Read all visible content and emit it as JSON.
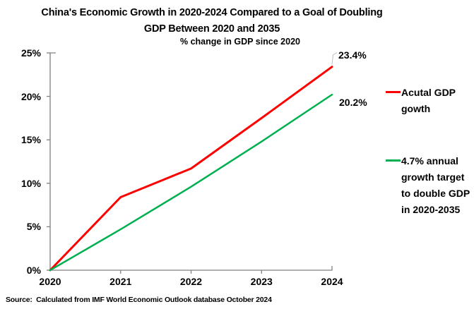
{
  "title": "China's Economic Growth in 2020-2024 Compared to a Goal of Doubling\nGDP Between 2020 and 2035",
  "subtitle": "% change in GDP since 2020",
  "source": "Source:  Calculated from IMF World Economic Outlook database October 2024",
  "colors": {
    "actual_line": "#ff0000",
    "target_line": "#00b050",
    "axis": "#808080",
    "leader": "#bfbfbf",
    "text": "#000000",
    "background": "#ffffff"
  },
  "legend": {
    "entries": [
      {
        "label": "Acutal GDP\ngowth",
        "color": "#ff0000"
      },
      {
        "label": "4.7% annual\ngrowth target\nto double GDP\nin 2020-2035",
        "color": "#00b050"
      }
    ]
  },
  "chart_data": {
    "type": "line",
    "title": "China's Economic Growth in 2020-2024 Compared to a Goal of Doubling GDP Between 2020 and 2035",
    "subtitle": "% change in GDP since 2020",
    "x": [
      "2020",
      "2021",
      "2022",
      "2023",
      "2024"
    ],
    "series": [
      {
        "name": "Acutal GDP gowth",
        "color": "#ff0000",
        "values": [
          0,
          8.4,
          11.7,
          17.5,
          23.4
        ],
        "end_label": "23.4%"
      },
      {
        "name": "4.7% annual growth target to double GDP in 2020-2035",
        "color": "#00b050",
        "values": [
          0,
          4.7,
          9.6,
          14.8,
          20.2
        ],
        "end_label": "20.2%"
      }
    ],
    "xlabel": "",
    "ylabel": "",
    "ylim": [
      0,
      25
    ],
    "ytick_step": 5,
    "ytick_labels": [
      "0%",
      "5%",
      "10%",
      "15%",
      "20%",
      "25%"
    ],
    "grid": false,
    "legend_position": "right"
  }
}
